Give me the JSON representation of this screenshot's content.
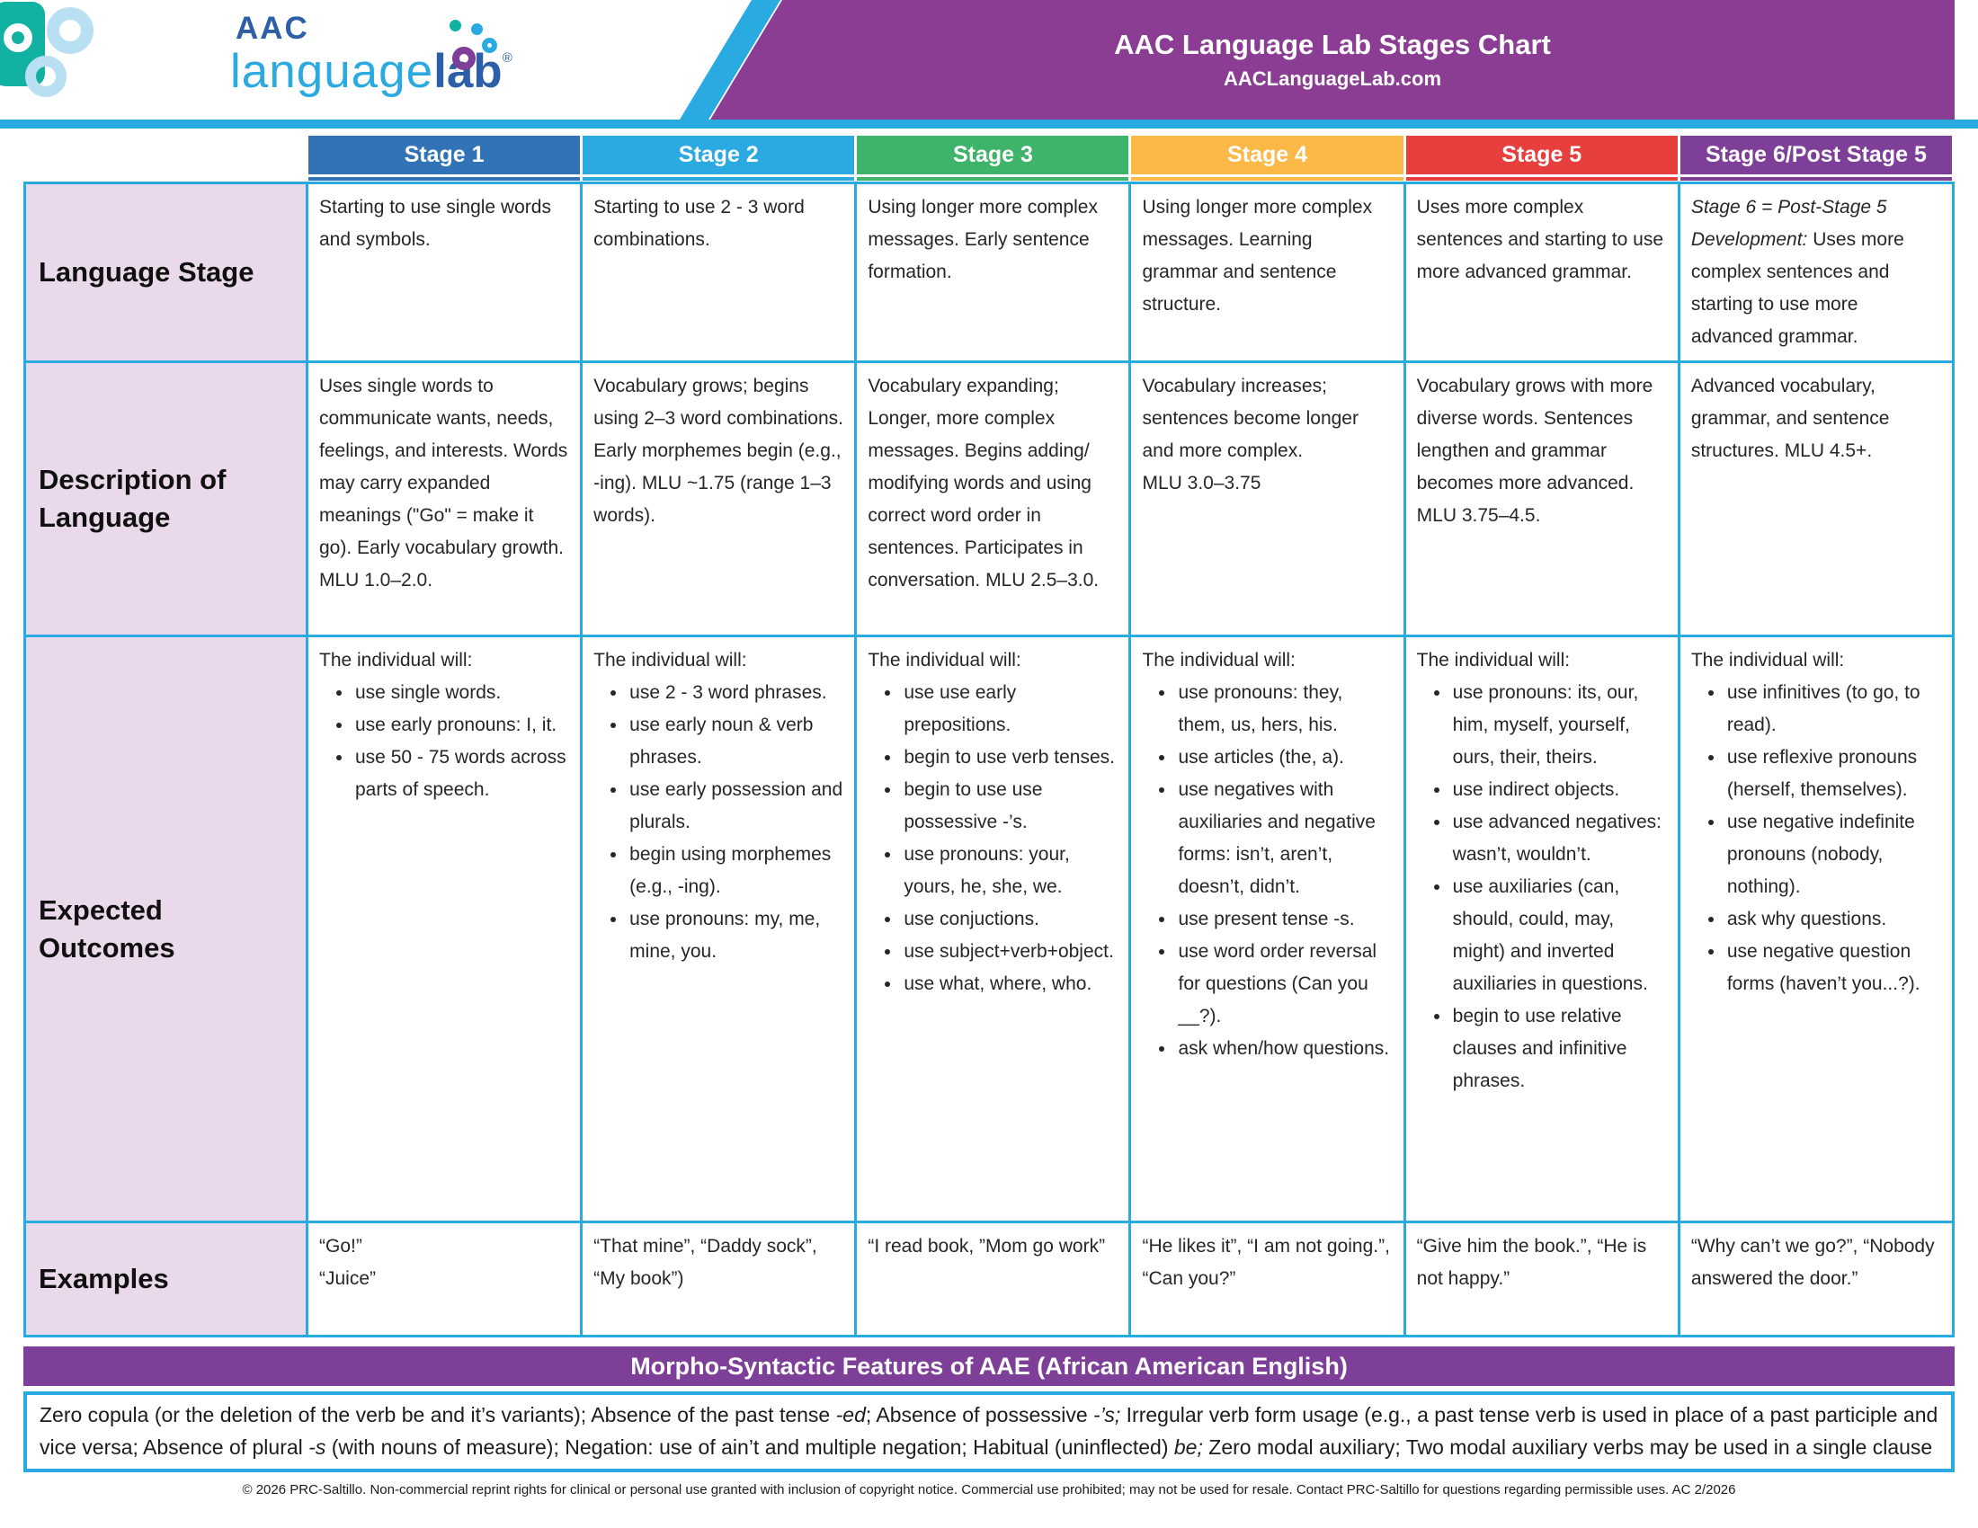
{
  "header": {
    "logo": {
      "top": "AAC",
      "light": "language",
      "bold": "lab",
      "reg": "®"
    },
    "title": "AAC Language Lab Stages Chart",
    "subtitle": "AACLanguageLab.com"
  },
  "stages": [
    {
      "label": "Stage 1",
      "color": "#3273b8"
    },
    {
      "label": "Stage 2",
      "color": "#2baae2"
    },
    {
      "label": "Stage 3",
      "color": "#3eb46a"
    },
    {
      "label": "Stage 4",
      "color": "#fcb948"
    },
    {
      "label": "Stage 5",
      "color": "#e73e3e"
    },
    {
      "label": "Stage 6/Post Stage 5",
      "color": "#7d3f98"
    }
  ],
  "rows": {
    "language_stage": {
      "label": "Language Stage",
      "cells": [
        [
          {
            "text": "Starting to use single words and symbols."
          }
        ],
        [
          {
            "text": "Starting to use 2 - 3 word combinations."
          }
        ],
        [
          {
            "text": "Using longer more complex messages. Early sentence formation."
          }
        ],
        [
          {
            "text": "Using longer more complex messages. Learning grammar and sentence structure."
          }
        ],
        [
          {
            "text": "Uses more complex sentences and starting to use more advanced grammar."
          }
        ],
        [
          {
            "text": "Stage 6 = Post-Stage 5 Development:",
            "italic": true
          },
          {
            "text": " Uses more complex sentences and starting to use more advanced grammar."
          }
        ]
      ]
    },
    "description": {
      "label": "Description of Language",
      "cells": [
        "Uses single words to communicate wants, needs, feelings, and interests. Words may carry expanded meanings (\"Go\" = make it go). Early vocabulary growth. MLU 1.0–2.0.",
        "Vocabulary grows; begins using 2–3 word combinations. Early morphemes begin (e.g., -ing). MLU ~1.75 (range 1–3 words).",
        "Vocabulary expanding; Longer, more complex messages. Begins adding/ modifying words and using correct word order in sentences. Participates in conversation. MLU 2.5–3.0.",
        "Vocabulary increases; sentences become longer and more complex.\nMLU 3.0–3.75",
        "Vocabulary grows with more diverse words. Sentences lengthen and grammar becomes more advanced. MLU 3.75–4.5.",
        "Advanced vocabulary, grammar, and sentence structures. MLU 4.5+."
      ]
    },
    "expected": {
      "label": "Expected Outcomes",
      "intro": "The individual will:",
      "cells": [
        [
          "use single words.",
          "use early pronouns: I, it.",
          "use 50 - 75 words across parts of speech."
        ],
        [
          "use 2 - 3 word phrases.",
          "use early noun & verb phrases.",
          "use early possession and plurals.",
          "begin using morphemes (e.g., -ing).",
          "use pronouns: my, me, mine, you."
        ],
        [
          "use use early prepositions.",
          "begin to use verb tenses.",
          "begin to use use possessive -’s.",
          "use pronouns: your, yours, he, she, we.",
          "use conjuctions.",
          "use subject+verb+object.",
          "use what, where, who."
        ],
        [
          "use pronouns: they, them, us, hers, his.",
          "use articles (the, a).",
          "use negatives with auxiliaries and negative forms: isn’t, aren’t, doesn’t, didn’t.",
          "use present tense -s.",
          "use word order reversal for questions (Can you __?).",
          "ask when/how questions."
        ],
        [
          "use pronouns: its, our, him, myself, yourself, ours, their, theirs.",
          "use indirect objects.",
          "use advanced negatives: wasn’t, wouldn’t.",
          "use auxiliaries (can, should, could, may, might) and inverted auxiliaries in questions.",
          "begin to use relative clauses and infinitive phrases."
        ],
        [
          "use infinitives (to go, to read).",
          "use reflexive pronouns (herself, themselves).",
          "use negative indefinite pronouns (nobody, nothing).",
          "ask why questions.",
          "use negative question forms (haven’t you...?)."
        ]
      ]
    },
    "examples": {
      "label": "Examples",
      "cells": [
        "“Go!”\n“Juice”",
        "“That mine”, “Daddy sock”, “My book”)",
        "“I read book, ”Mom go work”",
        "“He likes it”, “I am not going.”, “Can you?”",
        "“Give him the book.”, “He is not happy.”",
        "“Why can’t we go?”, “Nobody answered the door.”"
      ]
    }
  },
  "aae": {
    "title": "Morpho-Syntactic Features of AAE (African American English)",
    "text_runs": [
      {
        "text": "Zero copula (or the deletion of the verb be and it’s variants); Absence of the past tense "
      },
      {
        "text": "-ed",
        "italic": true
      },
      {
        "text": "; Absence of possessive "
      },
      {
        "text": "-’s;",
        "italic": true
      },
      {
        "text": " Irregular verb form usage (e.g., a past tense verb is used in place of a past participle and vice versa; Absence of plural "
      },
      {
        "text": "-s",
        "italic": true
      },
      {
        "text": " (with nouns of measure); Negation: use of ain’t and multiple negation; Habitual (uninflected) "
      },
      {
        "text": "be;",
        "italic": true
      },
      {
        "text": " Zero modal auxiliary; Two modal auxiliary verbs may be used in a single clause"
      }
    ]
  },
  "footer": "© 2026 PRC-Saltillo. Non-commercial reprint rights for clinical or personal use granted with inclusion of copyright notice. Commercial use prohibited; may not be used for resale. Contact PRC-Saltillo for questions regarding permissible uses. AC 2/2026"
}
